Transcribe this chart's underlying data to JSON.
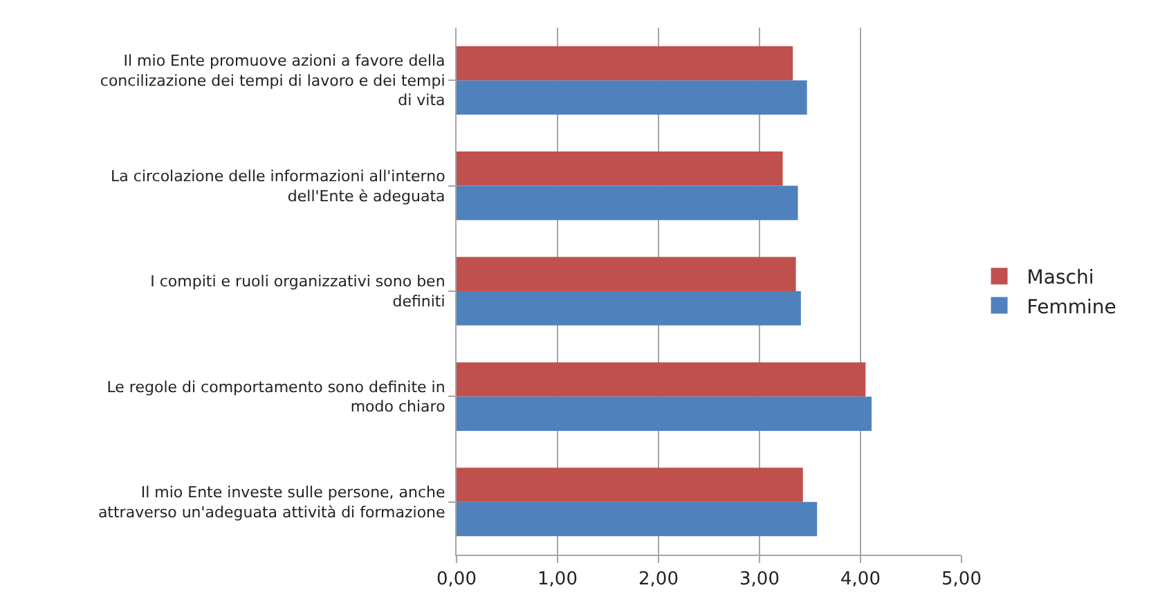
{
  "chart_data": {
    "type": "bar",
    "orientation": "horizontal",
    "categories": [
      "Il mio Ente promuove azioni a favore della concilizazione dei tempi di lavoro e dei tempi di vita",
      "La circolazione delle informazioni all'interno dell'Ente è adeguata",
      "I compiti e ruoli organizzativi sono ben definiti",
      "Le regole di comportamento sono definite in modo chiaro",
      "Il mio Ente investe sulle persone, anche attraverso un'adeguata attività di formazione"
    ],
    "series": [
      {
        "name": "Maschi",
        "color": "#c0504d",
        "values": [
          3.33,
          3.23,
          3.36,
          4.05,
          3.43
        ]
      },
      {
        "name": "Femmine",
        "color": "#4f81bd",
        "values": [
          3.47,
          3.38,
          3.41,
          4.11,
          3.57
        ]
      }
    ],
    "xlim": [
      0,
      5
    ],
    "xticks": [
      {
        "value": 0,
        "label": "0,00"
      },
      {
        "value": 1,
        "label": "1,00"
      },
      {
        "value": 2,
        "label": "2,00"
      },
      {
        "value": 3,
        "label": "3,00"
      },
      {
        "value": 4,
        "label": "4,00"
      },
      {
        "value": 5,
        "label": "5,00"
      }
    ],
    "grid": "x",
    "legend": "right"
  }
}
